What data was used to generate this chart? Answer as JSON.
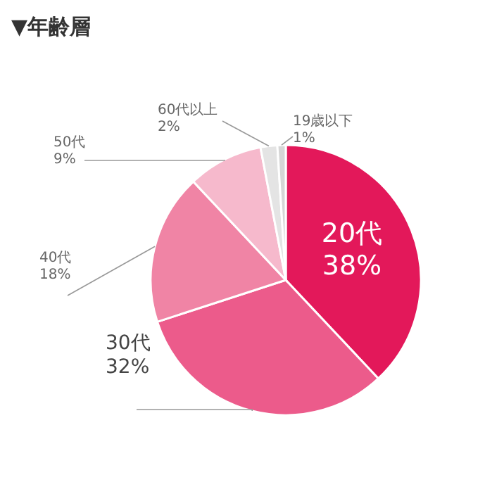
{
  "chart_data": {
    "type": "pie",
    "title": "▼年齢層",
    "categories": [
      "20代",
      "30代",
      "40代",
      "50代",
      "60代以上",
      "19歳以下"
    ],
    "values": [
      38,
      32,
      18,
      9,
      2,
      1
    ],
    "value_labels": [
      "38%",
      "32%",
      "18%",
      "9%",
      "2%",
      "1%"
    ],
    "colors": [
      "#e3185a",
      "#ec5b8b",
      "#f084a5",
      "#f6b9cc",
      "#e4e4e4",
      "#d6d6d6"
    ],
    "legend": false
  }
}
